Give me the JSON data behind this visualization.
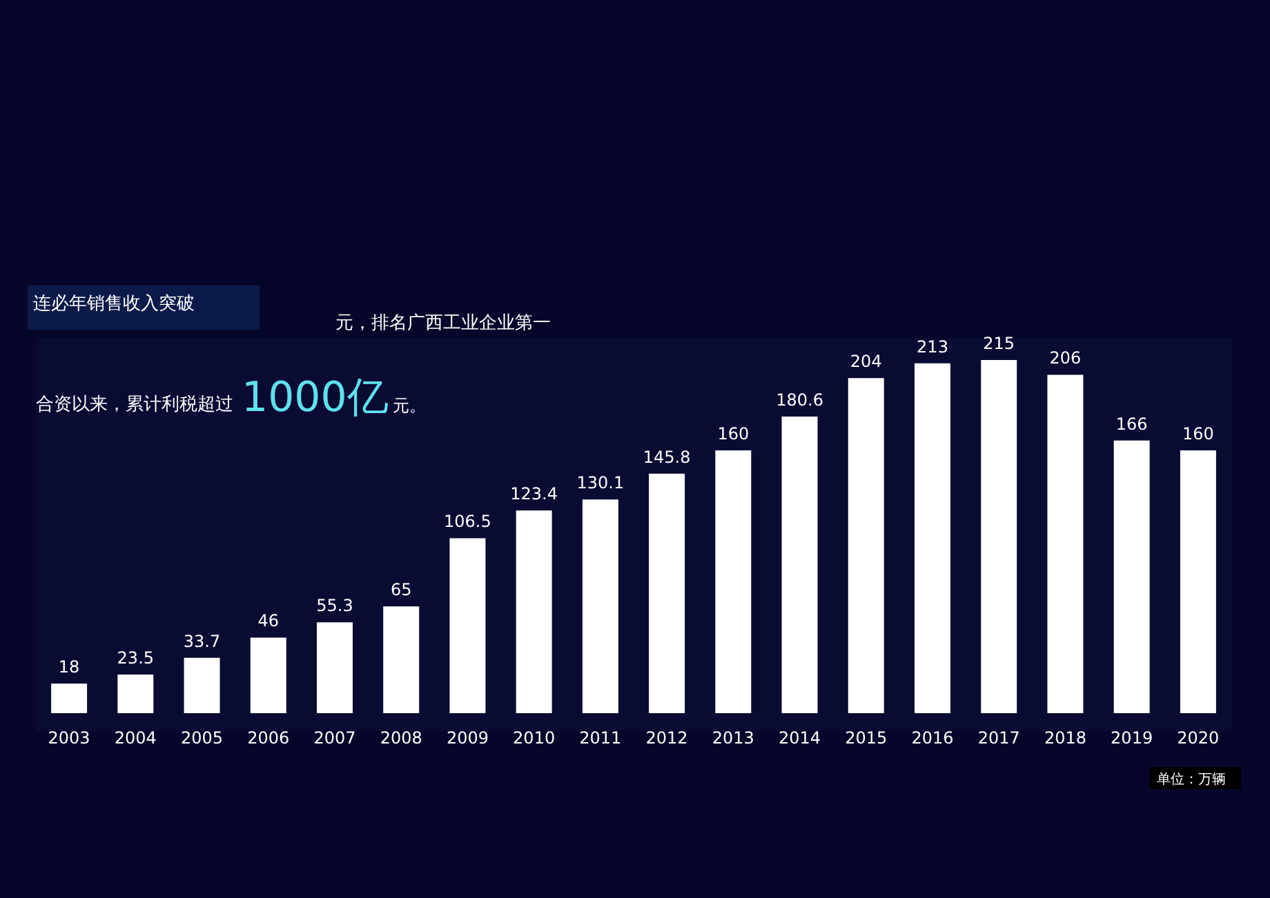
{
  "chart_data": {
    "type": "bar",
    "categories": [
      "2003",
      "2004",
      "2005",
      "2006",
      "2007",
      "2008",
      "2009",
      "2010",
      "2011",
      "2012",
      "2013",
      "2014",
      "2015",
      "2016",
      "2017",
      "2018",
      "2019",
      "2020"
    ],
    "values": [
      18,
      23.5,
      33.7,
      46,
      55.3,
      65,
      106.5,
      123.4,
      130.1,
      145.8,
      160,
      180.6,
      204,
      213,
      215,
      206,
      166,
      160
    ],
    "color": "#ffffff",
    "data_labels": true,
    "annotations": [
      "连必年销售收入突破",
      "元，排名广西工业企业第一",
      "合资以来，累计利税超过",
      "1000亿",
      "元。",
      "单位：万辆"
    ]
  }
}
